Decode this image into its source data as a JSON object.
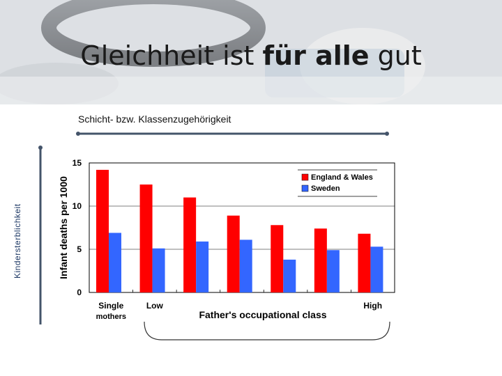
{
  "slide": {
    "title_part1": "Gleichheit ist ",
    "title_part2": "für alle",
    "title_part3": " gut",
    "subtitle": "Schicht- bzw. Klassenzugehörigkeit",
    "y_outer_label": "Kindersterblichkeit"
  },
  "chart_data": {
    "type": "bar",
    "ylabel": "Infant deaths per 1000",
    "xlabel": "Father's occupational class",
    "ylim": [
      0,
      15
    ],
    "yticks": [
      0,
      5,
      10,
      15
    ],
    "categories": [
      "1",
      "2",
      "3",
      "4",
      "5",
      "6",
      "7"
    ],
    "category_labels": [
      {
        "index": 0,
        "line1": "Single",
        "line2": "mothers"
      },
      {
        "index": 1,
        "line1": "Low",
        "line2": ""
      },
      {
        "index": 6,
        "line1": "High",
        "line2": ""
      }
    ],
    "legend_position": "top-right",
    "series": [
      {
        "name": "England & Wales",
        "color": "#ff0000",
        "values": [
          14.2,
          12.5,
          11.0,
          8.9,
          7.8,
          7.4,
          6.8
        ]
      },
      {
        "name": "Sweden",
        "color": "#3366ff",
        "values": [
          6.9,
          5.1,
          5.9,
          6.1,
          3.8,
          4.9,
          5.3
        ]
      }
    ]
  }
}
